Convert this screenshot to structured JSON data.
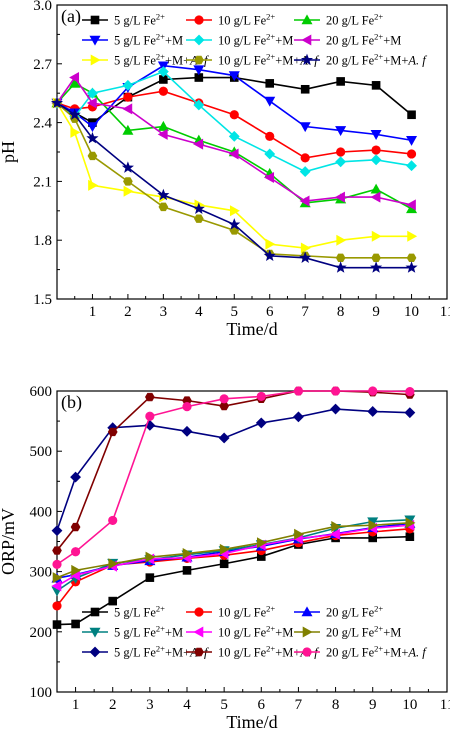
{
  "chart_data": [
    {
      "panel_label": "(a)",
      "type": "line",
      "xlabel": "Time/d",
      "ylabel": "pH",
      "xlim": [
        0,
        11
      ],
      "ylim": [
        1.5,
        3.0
      ],
      "x_ticks": [
        "1",
        "2",
        "3",
        "4",
        "5",
        "6",
        "7",
        "8",
        "9",
        "10",
        "11"
      ],
      "y_ticks": [
        "1.5",
        "1.8",
        "2.1",
        "2.4",
        "2.7",
        "3.0"
      ],
      "legend_placement": "top",
      "x": [
        0,
        0.5,
        1,
        2,
        3,
        4,
        5,
        6,
        7,
        8,
        9,
        10
      ],
      "series": [
        {
          "name": "5 g/L Fe2+",
          "color": "#000000",
          "marker": "square",
          "values": [
            2.5,
            2.45,
            2.4,
            2.53,
            2.62,
            2.63,
            2.63,
            2.6,
            2.57,
            2.61,
            2.59,
            2.44
          ]
        },
        {
          "name": "10 g/L Fe2+",
          "color": "#ff0000",
          "marker": "circle",
          "values": [
            2.5,
            2.47,
            2.48,
            2.53,
            2.56,
            2.5,
            2.44,
            2.33,
            2.22,
            2.25,
            2.26,
            2.24
          ]
        },
        {
          "name": "20 g/L Fe2+",
          "color": "#00cc00",
          "marker": "triangle-up",
          "values": [
            2.5,
            2.6,
            2.55,
            2.36,
            2.38,
            2.31,
            2.25,
            2.14,
            1.99,
            2.01,
            2.06,
            1.96
          ]
        },
        {
          "name": "5 g/L Fe2++M",
          "color": "#0000ff",
          "marker": "triangle-down",
          "values": [
            2.5,
            2.45,
            2.38,
            2.58,
            2.69,
            2.67,
            2.64,
            2.51,
            2.38,
            2.36,
            2.34,
            2.31
          ]
        },
        {
          "name": "10 g/L Fe2++M",
          "color": "#00e5e5",
          "marker": "diamond",
          "values": [
            2.5,
            2.43,
            2.55,
            2.59,
            2.66,
            2.49,
            2.33,
            2.24,
            2.15,
            2.2,
            2.21,
            2.18
          ]
        },
        {
          "name": "20 g/L Fe2++M",
          "color": "#cc00cc",
          "marker": "triangle-left",
          "values": [
            2.5,
            2.63,
            2.5,
            2.47,
            2.34,
            2.29,
            2.24,
            2.12,
            2.0,
            2.02,
            2.02,
            1.98
          ]
        },
        {
          "name": "5 g/L Fe2++M+A. f",
          "color": "#ffff00",
          "marker": "triangle-right",
          "values": [
            2.5,
            2.35,
            2.08,
            2.05,
            2.02,
            1.98,
            1.95,
            1.78,
            1.76,
            1.8,
            1.82,
            1.82
          ]
        },
        {
          "name": "10 g/L Fe2++M+A. f",
          "color": "#999900",
          "marker": "hexagon",
          "values": [
            2.5,
            2.42,
            2.23,
            2.1,
            1.97,
            1.91,
            1.85,
            1.73,
            1.72,
            1.71,
            1.71,
            1.71
          ]
        },
        {
          "name": "20 g/L Fe2++M+A. f",
          "color": "#000080",
          "marker": "star",
          "values": [
            2.5,
            2.44,
            2.32,
            2.17,
            2.03,
            1.96,
            1.88,
            1.72,
            1.71,
            1.66,
            1.66,
            1.66
          ]
        }
      ]
    },
    {
      "panel_label": "(b)",
      "type": "line",
      "xlabel": "Time/d",
      "ylabel": "ORP/mV",
      "xlim": [
        0.5,
        11
      ],
      "ylim": [
        100,
        600
      ],
      "x_ticks": [
        "1",
        "2",
        "3",
        "4",
        "5",
        "6",
        "7",
        "8",
        "9",
        "10",
        "11"
      ],
      "y_ticks": [
        "100",
        "200",
        "300",
        "400",
        "500",
        "600"
      ],
      "legend_placement": "bottom",
      "x": [
        0.5,
        1,
        2,
        3,
        4,
        5,
        6,
        7,
        8,
        9,
        10
      ],
      "series": [
        {
          "name": "5 g/L Fe2+",
          "color": "#000000",
          "marker": "square",
          "values": [
            212,
            213,
            251,
            290,
            302,
            313,
            325,
            345,
            356,
            356,
            358
          ]
        },
        {
          "name": "10 g/L Fe2+",
          "color": "#ff0000",
          "marker": "circle",
          "values": [
            243,
            283,
            311,
            316,
            322,
            327,
            335,
            348,
            360,
            366,
            371
          ]
        },
        {
          "name": "20 g/L Fe2+",
          "color": "#0000ff",
          "marker": "triangle-up",
          "values": [
            289,
            295,
            310,
            318,
            324,
            333,
            342,
            354,
            363,
            373,
            380
          ]
        },
        {
          "name": "5 g/L Fe2++M",
          "color": "#008080",
          "marker": "triangle-down",
          "values": [
            268,
            289,
            314,
            320,
            328,
            335,
            345,
            356,
            372,
            383,
            386
          ]
        },
        {
          "name": "10 g/L Fe2++M",
          "color": "#ff00ff",
          "marker": "triangle-left",
          "values": [
            276,
            294,
            309,
            321,
            323,
            330,
            344,
            355,
            362,
            372,
            377
          ]
        },
        {
          "name": "20 g/L Fe2++M",
          "color": "#808000",
          "marker": "triangle-right",
          "values": [
            290,
            302,
            313,
            324,
            330,
            337,
            348,
            362,
            375,
            377,
            381
          ]
        },
        {
          "name": "5 g/L Fe2++M+A. f",
          "color": "#000080",
          "marker": "diamond",
          "values": [
            368,
            457,
            539,
            543,
            533,
            522,
            547,
            557,
            570,
            566,
            564
          ]
        },
        {
          "name": "10 g/L Fe2++M+A. f",
          "color": "#800000",
          "marker": "hexagon",
          "values": [
            335,
            374,
            532,
            590,
            584,
            575,
            587,
            600,
            600,
            598,
            594
          ]
        },
        {
          "name": "20 g/L Fe2++M+A. f",
          "color": "#ff1493",
          "marker": "circle",
          "values": [
            312,
            333,
            385,
            558,
            574,
            587,
            591,
            600,
            600,
            600,
            599
          ]
        }
      ]
    }
  ]
}
